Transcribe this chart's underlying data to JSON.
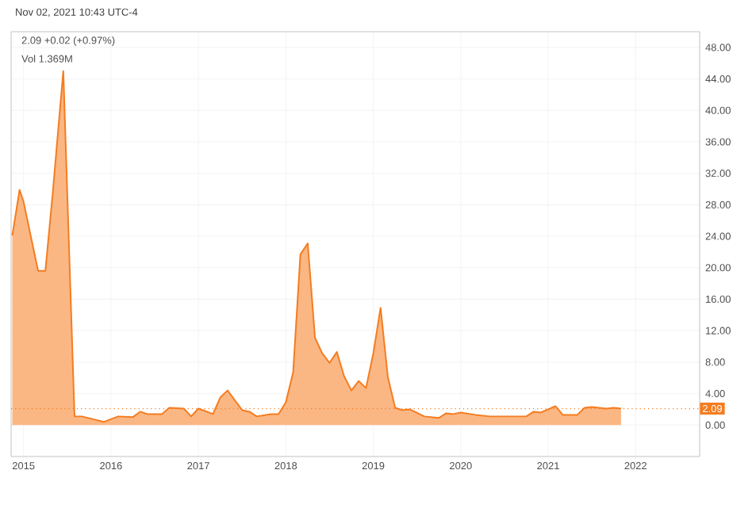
{
  "chart_data": {
    "type": "area",
    "subtitle": "Nov 02, 2021 10:43 UTC-4",
    "annotations": [
      "2.09 +0.02 (+0.97%)",
      "Vol 1.369M"
    ],
    "x": [
      "2014-11-15",
      "2014-12-15",
      "2015-01",
      "2015-03",
      "2015-04",
      "2015-05",
      "2015-06-15",
      "2015-08",
      "2015-09",
      "2015-12",
      "2016-02",
      "2016-04",
      "2016-05",
      "2016-06",
      "2016-08",
      "2016-09",
      "2016-11",
      "2016-12",
      "2017-01",
      "2017-03",
      "2017-04",
      "2017-05",
      "2017-07",
      "2017-08",
      "2017-09",
      "2017-11",
      "2017-12",
      "2018-01",
      "2018-02",
      "2018-03",
      "2018-04",
      "2018-05",
      "2018-06",
      "2018-07",
      "2018-08",
      "2018-09",
      "2018-10",
      "2018-11",
      "2018-12",
      "2019-01",
      "2019-02",
      "2019-03",
      "2019-04",
      "2019-05",
      "2019-06",
      "2019-08",
      "2019-10",
      "2019-11",
      "2019-12",
      "2020-01",
      "2020-03",
      "2020-05",
      "2020-07",
      "2020-10",
      "2020-11",
      "2020-12",
      "2021-02",
      "2021-03",
      "2021-05",
      "2021-06",
      "2021-07",
      "2021-09",
      "2021-10",
      "2021-11"
    ],
    "series": [
      {
        "color": "#f57c1f",
        "values": [
          24.1,
          29.9,
          28.4,
          19.6,
          19.6,
          29.4,
          45.0,
          1.1,
          1.1,
          0.4,
          1.1,
          1.0,
          1.7,
          1.4,
          1.4,
          2.2,
          2.1,
          1.1,
          2.1,
          1.4,
          3.5,
          4.4,
          1.9,
          1.7,
          1.1,
          1.4,
          1.4,
          2.9,
          6.7,
          21.7,
          23.1,
          11.1,
          9.1,
          7.9,
          9.3,
          6.2,
          4.4,
          5.6,
          4.7,
          9.1,
          14.9,
          6.1,
          2.2,
          1.9,
          2.0,
          1.1,
          0.9,
          1.5,
          1.4,
          1.6,
          1.3,
          1.1,
          1.1,
          1.1,
          1.7,
          1.6,
          2.4,
          1.3,
          1.3,
          2.2,
          2.3,
          2.1,
          2.2,
          2.1
        ]
      }
    ],
    "xlim": [
      "2014-11-10",
      "2022-09-25"
    ],
    "xticks": [
      "2015",
      "2016",
      "2017",
      "2018",
      "2019",
      "2020",
      "2021",
      "2022"
    ],
    "ylim": [
      -4,
      50
    ],
    "yticks": [
      {
        "value": 0,
        "label": "0.00"
      },
      {
        "value": 4,
        "label": "4.00"
      },
      {
        "value": 8,
        "label": "8.00"
      },
      {
        "value": 12,
        "label": "12.00"
      },
      {
        "value": 16,
        "label": "16.00"
      },
      {
        "value": 20,
        "label": "20.00"
      },
      {
        "value": 24,
        "label": "24.00"
      },
      {
        "value": 28,
        "label": "28.00"
      },
      {
        "value": 32,
        "label": "32.00"
      },
      {
        "value": 36,
        "label": "36.00"
      },
      {
        "value": 40,
        "label": "40.00"
      },
      {
        "value": 44,
        "label": "44.00"
      },
      {
        "value": 48,
        "label": "48.00"
      }
    ],
    "grid": true,
    "ref_lines": [
      {
        "axis": "y",
        "value": 2.09,
        "label": "2.09",
        "color": "#f57c1f",
        "line_style": "dotted"
      }
    ]
  }
}
